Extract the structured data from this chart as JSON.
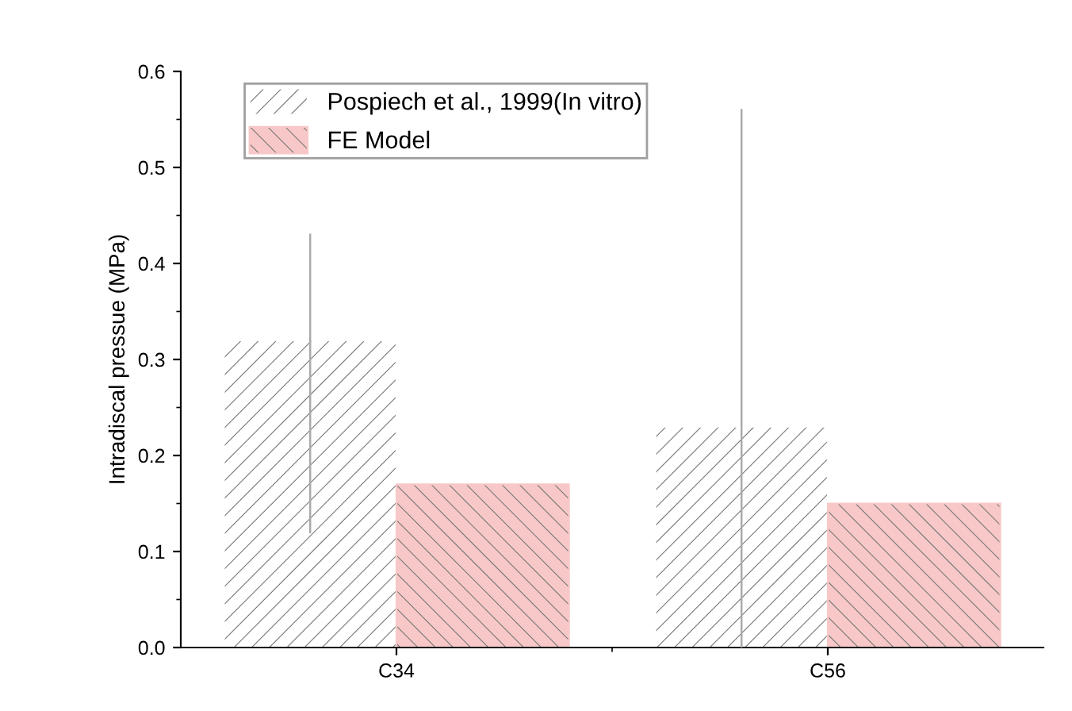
{
  "chart_data": {
    "type": "bar",
    "ylabel": "Intradiscal pressue (MPa)",
    "categories": [
      "C34",
      "C56"
    ],
    "series": [
      {
        "name": "Pospiech et al., 1999(In vitro)",
        "color": "#ffffff",
        "values": [
          0.32,
          0.23
        ],
        "errors": [
          [
            0.12,
            0.43
          ],
          [
            0.0,
            0.56
          ]
        ]
      },
      {
        "name": "FE Model",
        "color": "#f8c8c8",
        "values": [
          0.17,
          0.15
        ]
      }
    ],
    "ylim": [
      0,
      0.6
    ],
    "yticks": [
      {
        "value": 0,
        "label": "0.0"
      },
      0.1,
      0.2,
      0.3,
      0.4,
      0.5,
      0.6
    ],
    "grid": false,
    "legend": "top left"
  }
}
